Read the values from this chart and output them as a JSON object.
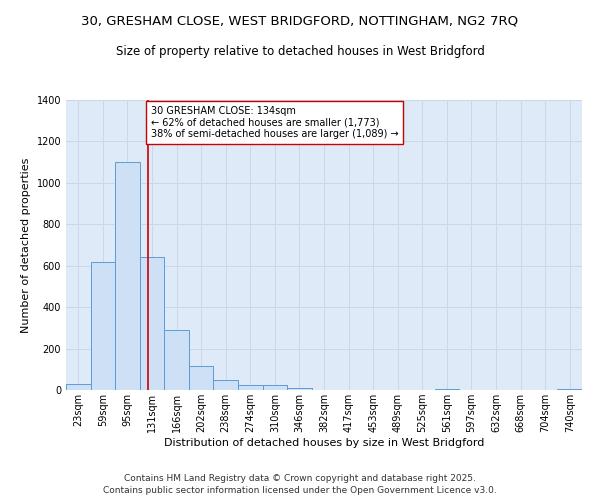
{
  "title1": "30, GRESHAM CLOSE, WEST BRIDGFORD, NOTTINGHAM, NG2 7RQ",
  "title2": "Size of property relative to detached houses in West Bridgford",
  "xlabel": "Distribution of detached houses by size in West Bridgford",
  "ylabel": "Number of detached properties",
  "categories": [
    "23sqm",
    "59sqm",
    "95sqm",
    "131sqm",
    "166sqm",
    "202sqm",
    "238sqm",
    "274sqm",
    "310sqm",
    "346sqm",
    "382sqm",
    "417sqm",
    "453sqm",
    "489sqm",
    "525sqm",
    "561sqm",
    "597sqm",
    "632sqm",
    "668sqm",
    "704sqm",
    "740sqm"
  ],
  "values": [
    30,
    620,
    1100,
    640,
    290,
    115,
    47,
    22,
    22,
    10,
    0,
    0,
    0,
    0,
    0,
    5,
    0,
    0,
    0,
    0,
    3
  ],
  "bar_color": "#cde0f5",
  "bar_edge_color": "#5b9bd5",
  "vline_x": 2.85,
  "vline_color": "#cc0000",
  "annotation_text": "30 GRESHAM CLOSE: 134sqm\n← 62% of detached houses are smaller (1,773)\n38% of semi-detached houses are larger (1,089) →",
  "annotation_box_color": "#ffffff",
  "annotation_box_edge": "#cc0000",
  "ylim": [
    0,
    1400
  ],
  "yticks": [
    0,
    200,
    400,
    600,
    800,
    1000,
    1200,
    1400
  ],
  "grid_color": "#c8d8ea",
  "background_color": "#deeaf8",
  "footer1": "Contains HM Land Registry data © Crown copyright and database right 2025.",
  "footer2": "Contains public sector information licensed under the Open Government Licence v3.0.",
  "title1_fontsize": 9.5,
  "title2_fontsize": 8.5,
  "xlabel_fontsize": 8,
  "ylabel_fontsize": 8,
  "tick_fontsize": 7,
  "annotation_fontsize": 7,
  "footer_fontsize": 6.5
}
